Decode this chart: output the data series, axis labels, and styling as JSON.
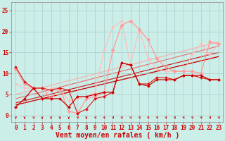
{
  "background_color": "#cceee8",
  "grid_color": "#aacccc",
  "xlabel": "Vent moyen/en rafales ( km/h )",
  "xlabel_color": "#cc0000",
  "xlabel_fontsize": 7,
  "tick_color": "#cc0000",
  "tick_fontsize": 5.5,
  "xlim": [
    -0.5,
    23.5
  ],
  "ylim": [
    -1.5,
    27
  ],
  "yticks": [
    0,
    5,
    10,
    15,
    20,
    25
  ],
  "xticks": [
    0,
    1,
    2,
    3,
    4,
    5,
    6,
    7,
    8,
    9,
    10,
    11,
    12,
    13,
    14,
    15,
    16,
    17,
    18,
    19,
    20,
    21,
    22,
    23
  ],
  "x": [
    0,
    1,
    2,
    3,
    4,
    5,
    6,
    7,
    8,
    9,
    10,
    11,
    12,
    13,
    14,
    15,
    16,
    17,
    18,
    19,
    20,
    21,
    22,
    23
  ],
  "line1_y": [
    2.0,
    4.0,
    6.5,
    4.0,
    4.0,
    4.0,
    2.0,
    4.5,
    4.5,
    5.0,
    5.5,
    5.5,
    12.5,
    12.0,
    7.5,
    7.0,
    8.5,
    8.5,
    8.5,
    9.5,
    9.5,
    9.5,
    8.5,
    8.5
  ],
  "line1_color": "#cc0000",
  "line1_marker": "D",
  "line1_markersize": 2.0,
  "line1_linewidth": 0.9,
  "line2_y": [
    11.5,
    8.0,
    6.5,
    6.5,
    6.0,
    6.5,
    6.0,
    0.5,
    1.5,
    4.0,
    4.5,
    5.5,
    12.5,
    12.0,
    7.5,
    7.5,
    9.0,
    9.0,
    8.5,
    9.5,
    9.5,
    9.0,
    8.5,
    8.5
  ],
  "line2_color": "#dd1111",
  "line2_marker": "D",
  "line2_markersize": 2.0,
  "line2_linewidth": 0.8,
  "line3_y": [
    11.0,
    7.5,
    6.5,
    6.5,
    4.0,
    6.5,
    1.0,
    0.5,
    4.0,
    4.5,
    5.5,
    15.5,
    21.5,
    22.5,
    20.5,
    18.0,
    13.5,
    11.5,
    10.5,
    10.5,
    10.5,
    10.0,
    17.5,
    17.0
  ],
  "line3_color": "#ff9999",
  "line3_marker": "D",
  "line3_markersize": 2.5,
  "line3_linewidth": 0.9,
  "line4_y": [
    7.5,
    6.5,
    6.5,
    4.0,
    6.5,
    6.5,
    3.5,
    4.0,
    4.5,
    5.5,
    15.5,
    21.0,
    22.5,
    12.0,
    20.5,
    13.5,
    11.0,
    10.5,
    10.5,
    10.5,
    14.5,
    17.0,
    14.5,
    17.0
  ],
  "line4_color": "#ffbbbb",
  "line4_marker": "D",
  "line4_markersize": 2.0,
  "line4_linewidth": 0.8,
  "reg_lines": [
    {
      "x": [
        0,
        23
      ],
      "y": [
        2.5,
        14.0
      ],
      "color": "#cc0000",
      "lw": 1.0
    },
    {
      "x": [
        0,
        23
      ],
      "y": [
        3.0,
        15.0
      ],
      "color": "#cc2222",
      "lw": 0.9
    },
    {
      "x": [
        0,
        23
      ],
      "y": [
        4.0,
        16.5
      ],
      "color": "#ee6666",
      "lw": 0.8
    },
    {
      "x": [
        0,
        23
      ],
      "y": [
        5.0,
        17.5
      ],
      "color": "#ffaaaa",
      "lw": 0.8
    }
  ],
  "arrow_color": "#cc0000",
  "arrow_angles_deg": [
    90,
    90,
    65,
    90,
    90,
    90,
    90,
    65,
    90,
    55,
    55,
    55,
    55,
    55,
    55,
    50,
    50,
    50,
    50,
    50,
    50,
    50,
    50,
    50
  ]
}
